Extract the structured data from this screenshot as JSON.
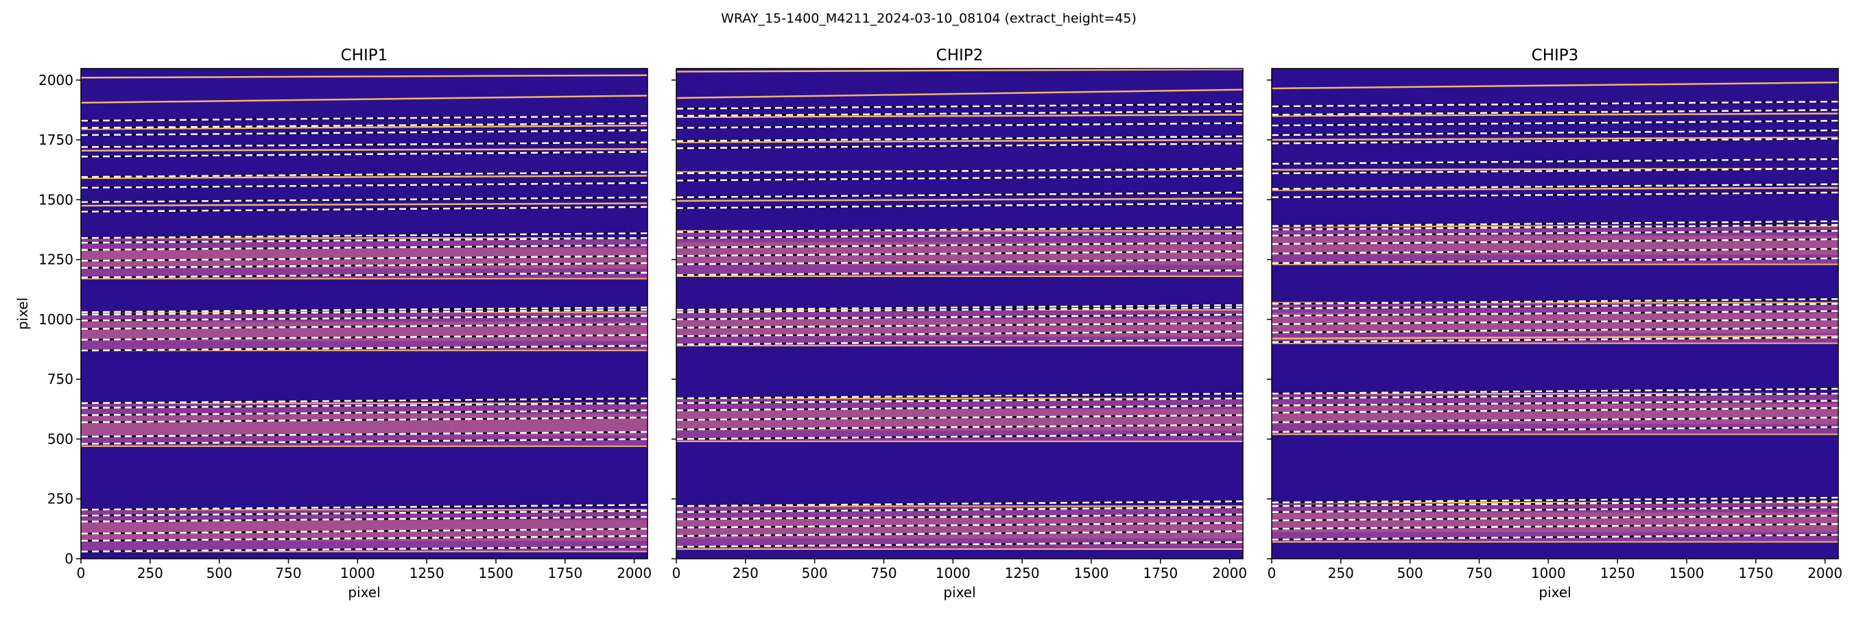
{
  "figure": {
    "suptitle": "WRAY_15-1400_M4211_2024-03-10_08104  (extract_height=45)"
  },
  "colors": {
    "background": "#2c0f8e",
    "order_band": "#8a3a9a",
    "order_band_hot": "#c4688a",
    "trace_line": "#f0b36a",
    "extract_line": "#ffffff",
    "gap_line": "#000000",
    "axis": "#000000"
  },
  "chart_data": [
    {
      "type": "heatmap",
      "title": "CHIP1",
      "xlabel": "pixel",
      "ylabel": "pixel",
      "xlim": [
        0,
        2048
      ],
      "ylim": [
        0,
        2048
      ],
      "xticks": [
        0,
        250,
        500,
        750,
        1000,
        1250,
        1500,
        1750,
        2000
      ],
      "yticks": [
        0,
        250,
        500,
        750,
        1000,
        1250,
        1500,
        1750,
        2000
      ],
      "colormap": "plasma",
      "order_bands": [
        [
          30,
          205
        ],
        [
          470,
          650
        ],
        [
          870,
          1030
        ],
        [
          1170,
          1340
        ]
      ],
      "order_band_slope": 0,
      "extraction_lines": [
        30,
        75,
        105,
        155,
        180,
        205,
        480,
        510,
        570,
        600,
        630,
        650,
        870,
        915,
        960,
        995,
        1020,
        1030,
        1175,
        1215,
        1245,
        1290,
        1320,
        1340,
        1450,
        1490,
        1550,
        1595,
        1680,
        1720,
        1770,
        1800,
        1830
      ],
      "extraction_line_slope": 20,
      "trace_lines": [
        [
          2010,
          2020
        ],
        [
          1905,
          1935
        ],
        [
          1475,
          1485
        ],
        [
          1590,
          1600
        ],
        [
          1705,
          1712
        ],
        [
          1795,
          1810
        ]
      ]
    },
    {
      "type": "heatmap",
      "title": "CHIP2",
      "xlabel": "pixel",
      "ylabel": "",
      "xlim": [
        0,
        2048
      ],
      "ylim": [
        0,
        2048
      ],
      "xticks": [
        0,
        250,
        500,
        750,
        1000,
        1250,
        1500,
        1750,
        2000
      ],
      "yticks": [
        0,
        250,
        500,
        750,
        1000,
        1250,
        1500,
        1750,
        2000
      ],
      "colormap": "plasma",
      "order_bands": [
        [
          40,
          220
        ],
        [
          490,
          670
        ],
        [
          890,
          1040
        ],
        [
          1180,
          1370
        ]
      ],
      "order_band_slope": 0,
      "extraction_lines": [
        50,
        95,
        130,
        165,
        195,
        220,
        500,
        540,
        580,
        620,
        650,
        670,
        895,
        930,
        965,
        1000,
        1030,
        1040,
        1185,
        1230,
        1265,
        1300,
        1340,
        1365,
        1465,
        1510,
        1580,
        1610,
        1715,
        1745,
        1800,
        1850,
        1880
      ],
      "extraction_line_slope": 20,
      "trace_lines": [
        [
          1925,
          1960
        ],
        [
          1495,
          1505
        ],
        [
          1615,
          1625
        ],
        [
          1740,
          1750
        ],
        [
          1845,
          1855
        ],
        [
          2035,
          2045
        ]
      ]
    },
    {
      "type": "heatmap",
      "title": "CHIP3",
      "xlabel": "pixel",
      "ylabel": "",
      "xlim": [
        0,
        2048
      ],
      "ylim": [
        0,
        2048
      ],
      "xticks": [
        0,
        250,
        500,
        750,
        1000,
        1250,
        1500,
        1750,
        2000
      ],
      "yticks": [
        0,
        250,
        500,
        750,
        1000,
        1250,
        1500,
        1750,
        2000
      ],
      "colormap": "plasma",
      "order_bands": [
        [
          70,
          235
        ],
        [
          520,
          690
        ],
        [
          900,
          1070
        ],
        [
          1230,
          1390
        ]
      ],
      "order_band_slope": 0,
      "extraction_lines": [
        80,
        125,
        160,
        195,
        220,
        235,
        530,
        570,
        610,
        640,
        670,
        690,
        905,
        945,
        980,
        1015,
        1045,
        1065,
        1235,
        1275,
        1315,
        1350,
        1375,
        1390,
        1510,
        1545,
        1610,
        1650,
        1735,
        1770,
        1810,
        1855,
        1890
      ],
      "extraction_line_slope": 20,
      "trace_lines": [
        [
          1965,
          1990
        ],
        [
          1540,
          1550
        ],
        [
          1625,
          1630
        ],
        [
          1750,
          1760
        ],
        [
          1850,
          1860
        ],
        [
          920,
          930
        ]
      ]
    }
  ]
}
